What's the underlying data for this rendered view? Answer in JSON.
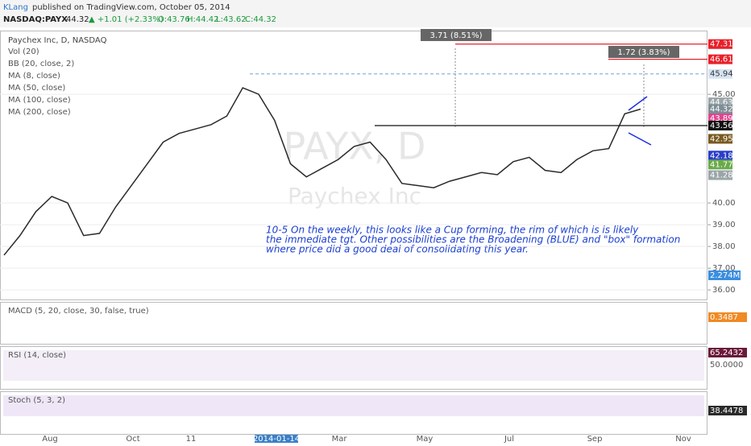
{
  "header": {
    "author": "KLang",
    "published": "published on TradingView.com, October 05, 2014",
    "symbol": "NASDAQ:PAYX",
    "last": "44.32",
    "change": "▲ +1.01 (+2.33%)",
    "ohlc": [
      "O:43.76",
      "H:44.42",
      "L:43.62",
      "C:44.32"
    ]
  },
  "chart_data": {
    "type": "line",
    "title": "Paychex Inc, D, NASDAQ",
    "watermark": "PAYX, D",
    "watermark_sub": "Paychex Inc",
    "legend": [
      "Vol (20)",
      "BB (20, close, 2)",
      "MA (8, close)",
      "MA (50, close)",
      "MA (100, close)",
      "MA (200, close)"
    ],
    "color": "#2a2a2a",
    "values": [
      37.6,
      38.5,
      39.6,
      40.3,
      40.0,
      38.5,
      38.6,
      39.8,
      40.8,
      41.8,
      42.8,
      43.2,
      43.4,
      43.6,
      44.0,
      45.3,
      45.0,
      43.8,
      41.8,
      41.2,
      41.6,
      42.0,
      42.6,
      42.8,
      42.0,
      40.9,
      40.8,
      40.7,
      41.0,
      41.2,
      41.4,
      41.3,
      41.9,
      42.1,
      41.5,
      41.4,
      42.0,
      42.4,
      42.5,
      44.1,
      44.32
    ],
    "ylim": [
      35.56,
      47.93
    ],
    "yticks": [
      {
        "value": 36,
        "label": "36.00"
      },
      {
        "value": 37,
        "label": "37.00"
      },
      {
        "value": 38,
        "label": "38.00"
      },
      {
        "value": 39,
        "label": "39.00"
      },
      {
        "value": 40,
        "label": "40.00"
      },
      {
        "value": 45,
        "label": "45.00"
      }
    ],
    "price_labels": [
      {
        "value": 47.31,
        "label": "47.31",
        "color": "#e8202a"
      },
      {
        "value": 46.61,
        "label": "46.61",
        "color": "#e8202a"
      },
      {
        "value": 45.94,
        "label": "45.94",
        "color": "#d6e4f2"
      },
      {
        "value": 44.63,
        "label": "44.63",
        "color": "#9aa5a8"
      },
      {
        "value": 44.32,
        "label": "44.32",
        "color": "#7d8e95"
      },
      {
        "value": 43.89,
        "label": "43.89",
        "color": "#e0458f"
      },
      {
        "value": 43.56,
        "label": "43.56",
        "color": "#111111"
      },
      {
        "value": 42.95,
        "label": "42.95",
        "color": "#7a5a20"
      },
      {
        "value": 42.18,
        "label": "42.18",
        "color": "#2a3ec8"
      },
      {
        "value": 41.77,
        "label": "41.77",
        "color": "#6aaa4a"
      },
      {
        "value": 41.28,
        "label": "41.28",
        "color": "#9aa5a8"
      }
    ],
    "volume_label": "2.274M",
    "annotations": [
      "3.71 (8.51%)",
      "1.72 (3.83%)",
      "10-5 On the weekly, this looks like a Cup forming, the rim of which is is likely",
      "the immediate tgt.  Other possibilities are the Broadening (BLUE) and \"box\" formation",
      "where price did a good deal of consolidating this year."
    ],
    "panes": [
      {
        "title": "MACD (5, 20, close, 30, false, true)",
        "label": "0.3487"
      },
      {
        "title": "RSI (14, close)",
        "label": "65.2432",
        "label2": "50.0000"
      },
      {
        "title": "Stoch (5, 3, 2)",
        "label": "38.4478"
      }
    ],
    "xaxis": [
      "Aug",
      "Oct",
      "11",
      "2014-01-14",
      "Mar",
      "May",
      "Jul",
      "Sep",
      "Nov"
    ]
  }
}
